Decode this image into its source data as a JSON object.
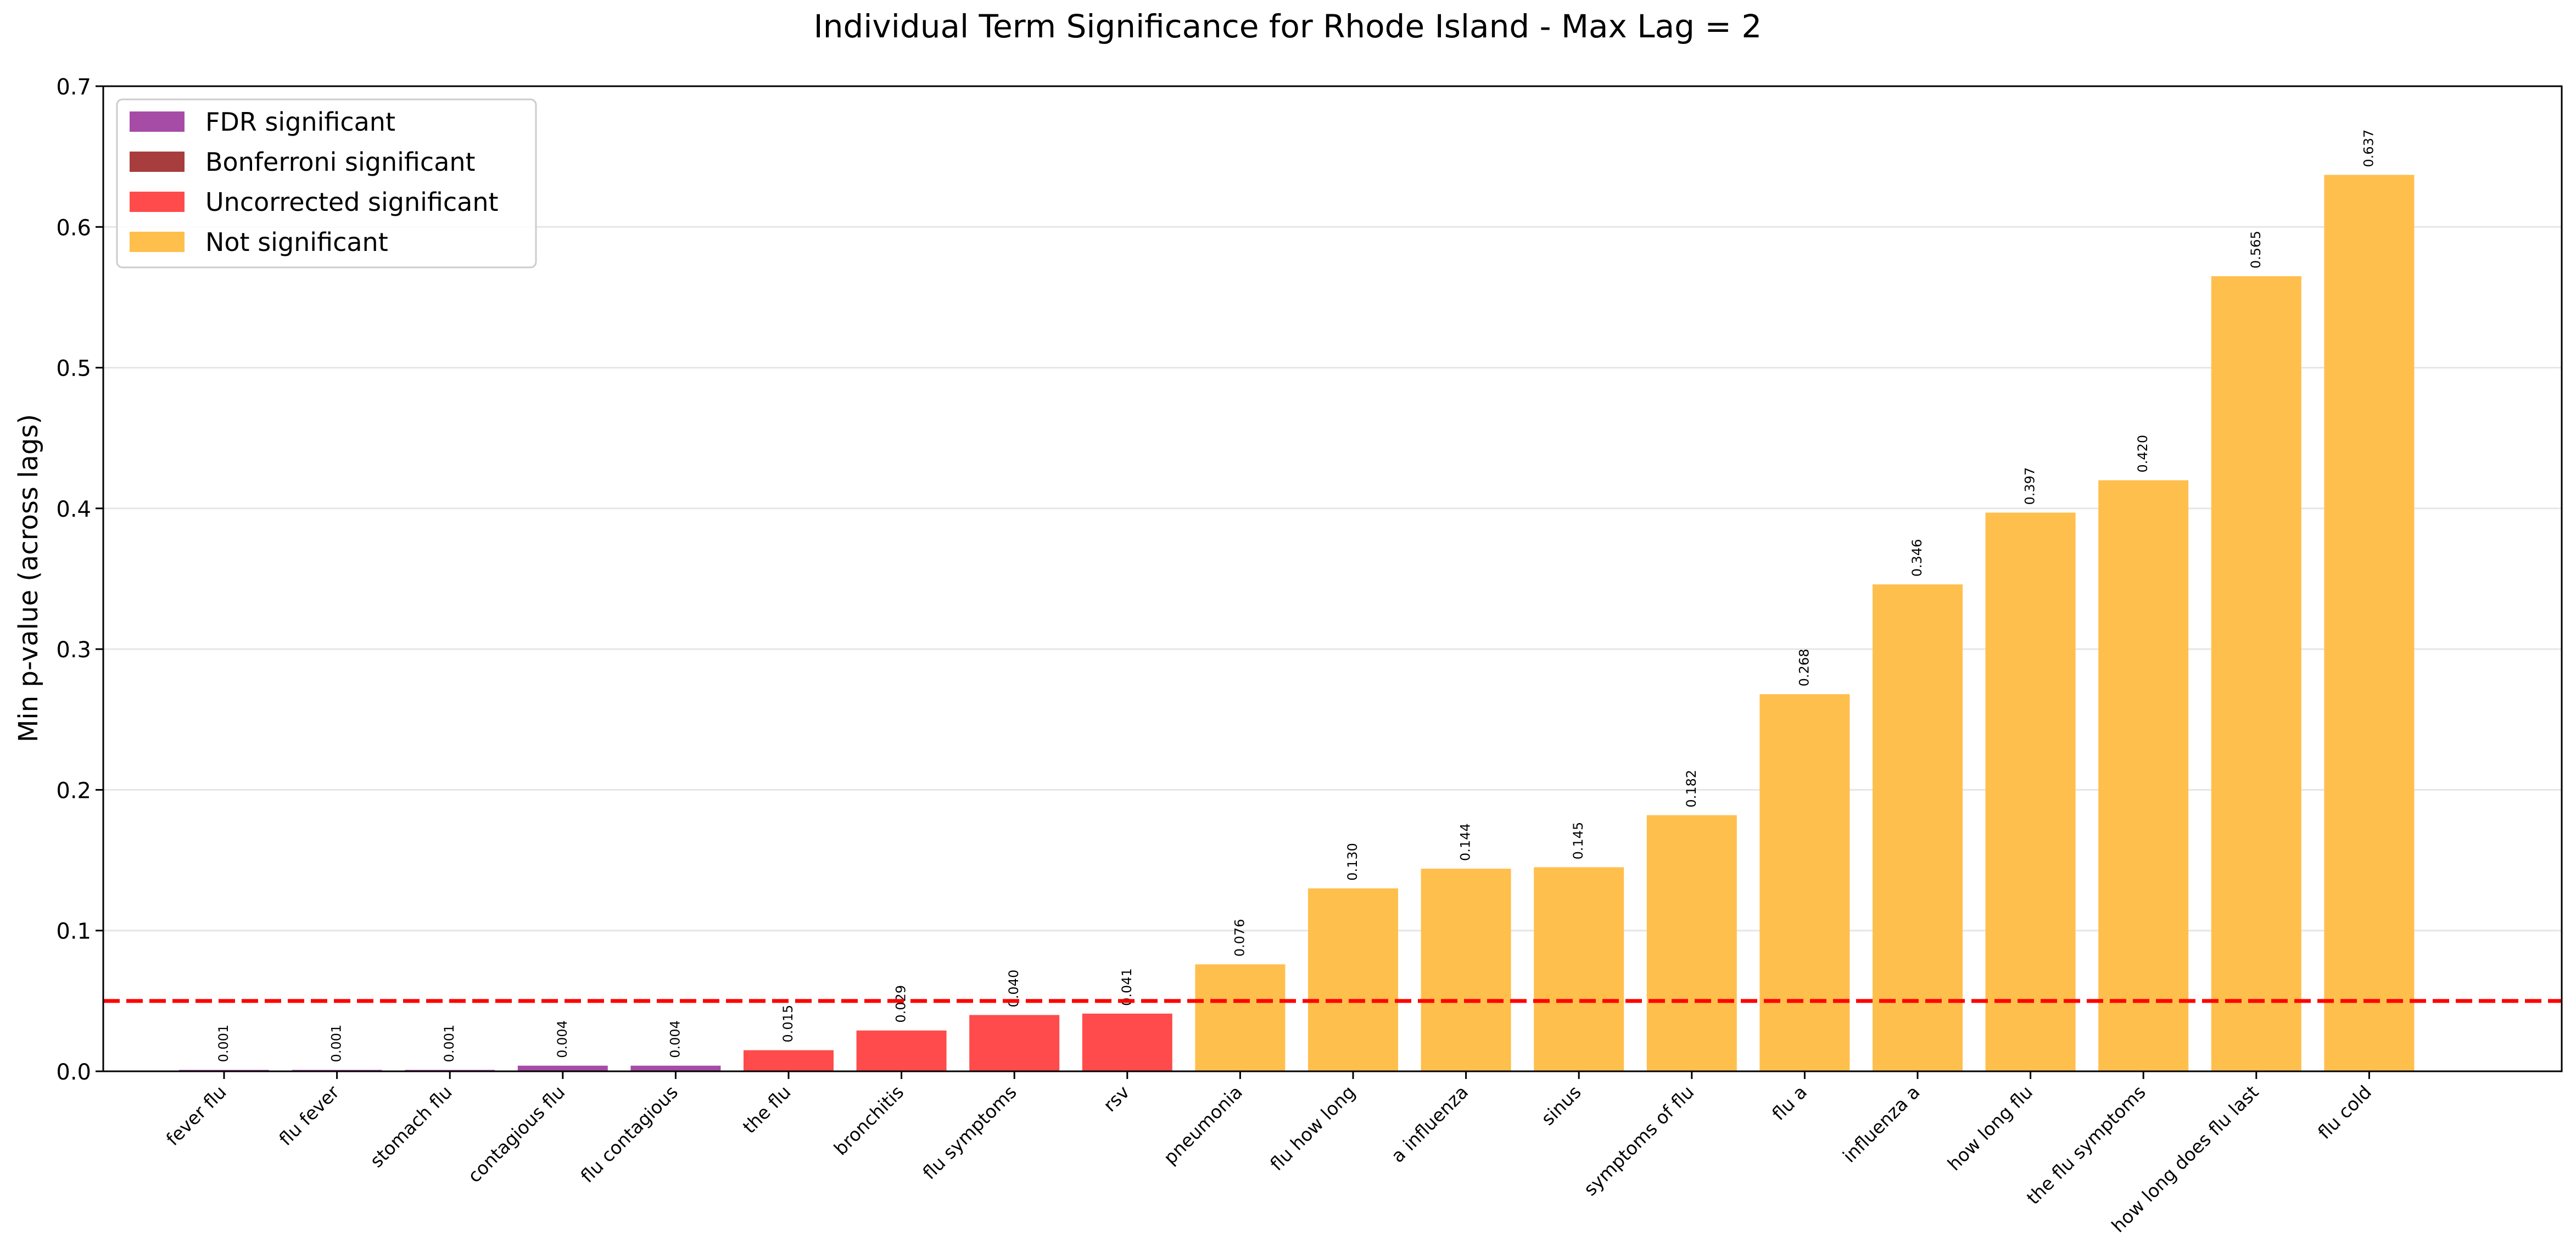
{
  "chart_data": {
    "type": "bar",
    "title": "Individual Term Significance for Rhode Island - Max Lag = 2",
    "xlabel": "",
    "ylabel": "Min p-value (across lags)",
    "ylim": [
      0,
      0.7
    ],
    "yticks": [
      "0.0",
      "0.1",
      "0.2",
      "0.3",
      "0.4",
      "0.5",
      "0.6",
      "0.7"
    ],
    "grid": "horizontal",
    "threshold": 0.05,
    "legend_position": "upper left",
    "legend": [
      {
        "label": "FDR significant",
        "color": "#a64ca6"
      },
      {
        "label": "Bonferroni significant",
        "color": "#a83d3d"
      },
      {
        "label": "Uncorrected significant",
        "color": "#ff4b4b"
      },
      {
        "label": "Not significant",
        "color": "#ffbf4d"
      }
    ],
    "bars": [
      {
        "category": "fever flu",
        "value": 0.001,
        "label": "0.001",
        "class": "FDR significant"
      },
      {
        "category": "flu fever",
        "value": 0.001,
        "label": "0.001",
        "class": "FDR significant"
      },
      {
        "category": "stomach flu",
        "value": 0.001,
        "label": "0.001",
        "class": "FDR significant"
      },
      {
        "category": "contagious flu",
        "value": 0.004,
        "label": "0.004",
        "class": "FDR significant"
      },
      {
        "category": "flu contagious",
        "value": 0.004,
        "label": "0.004",
        "class": "FDR significant"
      },
      {
        "category": "the flu",
        "value": 0.015,
        "label": "0.015",
        "class": "Uncorrected significant"
      },
      {
        "category": "bronchitis",
        "value": 0.029,
        "label": "0.029",
        "class": "Uncorrected significant"
      },
      {
        "category": "flu symptoms",
        "value": 0.04,
        "label": "0.040",
        "class": "Uncorrected significant"
      },
      {
        "category": "rsv",
        "value": 0.041,
        "label": "0.041",
        "class": "Uncorrected significant"
      },
      {
        "category": "pneumonia",
        "value": 0.076,
        "label": "0.076",
        "class": "Not significant"
      },
      {
        "category": "flu how long",
        "value": 0.13,
        "label": "0.130",
        "class": "Not significant"
      },
      {
        "category": "a influenza",
        "value": 0.144,
        "label": "0.144",
        "class": "Not significant"
      },
      {
        "category": "sinus",
        "value": 0.145,
        "label": "0.145",
        "class": "Not significant"
      },
      {
        "category": "symptoms of flu",
        "value": 0.182,
        "label": "0.182",
        "class": "Not significant"
      },
      {
        "category": "flu a",
        "value": 0.268,
        "label": "0.268",
        "class": "Not significant"
      },
      {
        "category": "influenza a",
        "value": 0.346,
        "label": "0.346",
        "class": "Not significant"
      },
      {
        "category": "how long flu",
        "value": 0.397,
        "label": "0.397",
        "class": "Not significant"
      },
      {
        "category": "the flu symptoms",
        "value": 0.42,
        "label": "0.420",
        "class": "Not significant"
      },
      {
        "category": "how long does flu last",
        "value": 0.565,
        "label": "0.565",
        "class": "Not significant"
      },
      {
        "category": "flu cold",
        "value": 0.637,
        "label": "0.637",
        "class": "Not significant"
      }
    ]
  }
}
